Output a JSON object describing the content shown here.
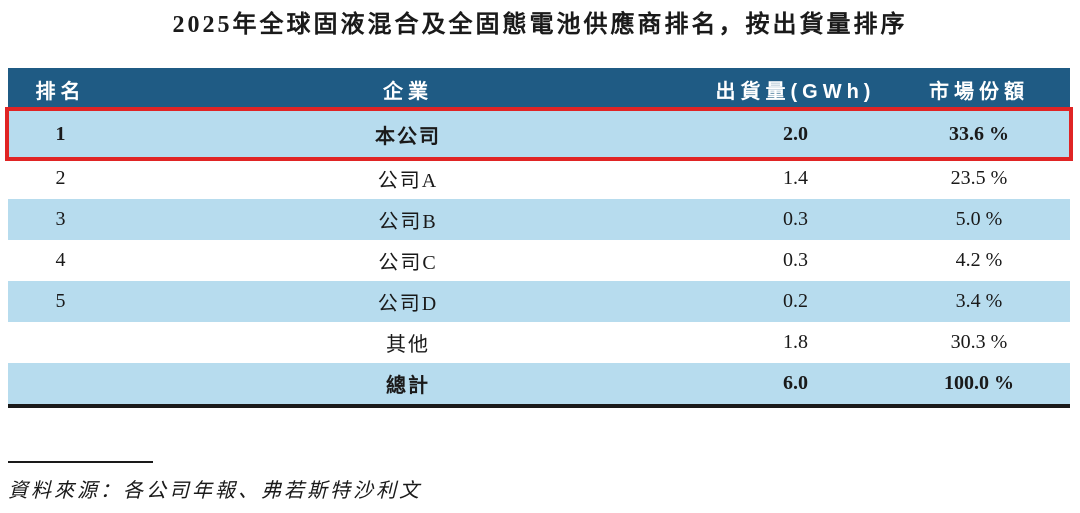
{
  "title": "2025年全球固液混合及全固態電池供應商排名，按出貨量排序",
  "table": {
    "columns": [
      "排名",
      "企業",
      "出貨量(GWh)",
      "市場份額"
    ],
    "rows": [
      {
        "rank": "1",
        "company": "本公司",
        "shipment": "2.0",
        "share": "33.6 %"
      },
      {
        "rank": "2",
        "company": "公司A",
        "shipment": "1.4",
        "share": "23.5 %"
      },
      {
        "rank": "3",
        "company": "公司B",
        "shipment": "0.3",
        "share": "5.0 %"
      },
      {
        "rank": "4",
        "company": "公司C",
        "shipment": "0.3",
        "share": "4.2 %"
      },
      {
        "rank": "5",
        "company": "公司D",
        "shipment": "0.2",
        "share": "3.4 %"
      },
      {
        "rank": "",
        "company": "其他",
        "shipment": "1.8",
        "share": "30.3 %"
      },
      {
        "rank": "",
        "company": "總計",
        "shipment": "6.0",
        "share": "100.0 %"
      }
    ]
  },
  "footnote": {
    "text": "資料來源：各公司年報、弗若斯特沙利文"
  },
  "colors": {
    "header_bg": "#1f5b84",
    "header_text": "#ffffff",
    "row_alt_bg": "#b7dcee",
    "highlight_border": "#e02424",
    "total_rule": "#1a1a1a",
    "text": "#1a1a1a"
  }
}
